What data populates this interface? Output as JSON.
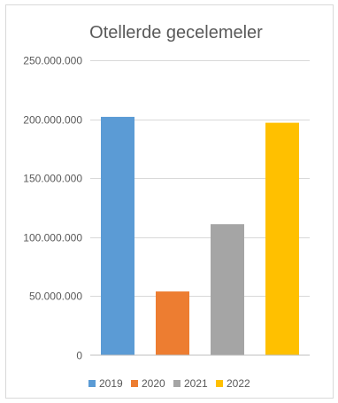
{
  "chart_data": {
    "type": "bar",
    "title": "Otellerde gecelemeler",
    "categories": [
      "2019",
      "2020",
      "2021",
      "2022"
    ],
    "values": [
      202000000,
      54000000,
      111000000,
      197000000
    ],
    "ylim": [
      0,
      250000000
    ],
    "yticks": [
      0,
      50000000,
      100000000,
      150000000,
      200000000,
      250000000
    ],
    "ytick_labels": [
      "0",
      "50.000.000",
      "100.000.000",
      "150.000.000",
      "200.000.000",
      "250.000.000"
    ],
    "grid": true,
    "legend": "bottom",
    "legend_entries": [
      "2019",
      "2020",
      "2021",
      "2022"
    ],
    "colors": [
      "#5b9bd5",
      "#ed7d31",
      "#a5a5a5",
      "#ffc000"
    ]
  }
}
